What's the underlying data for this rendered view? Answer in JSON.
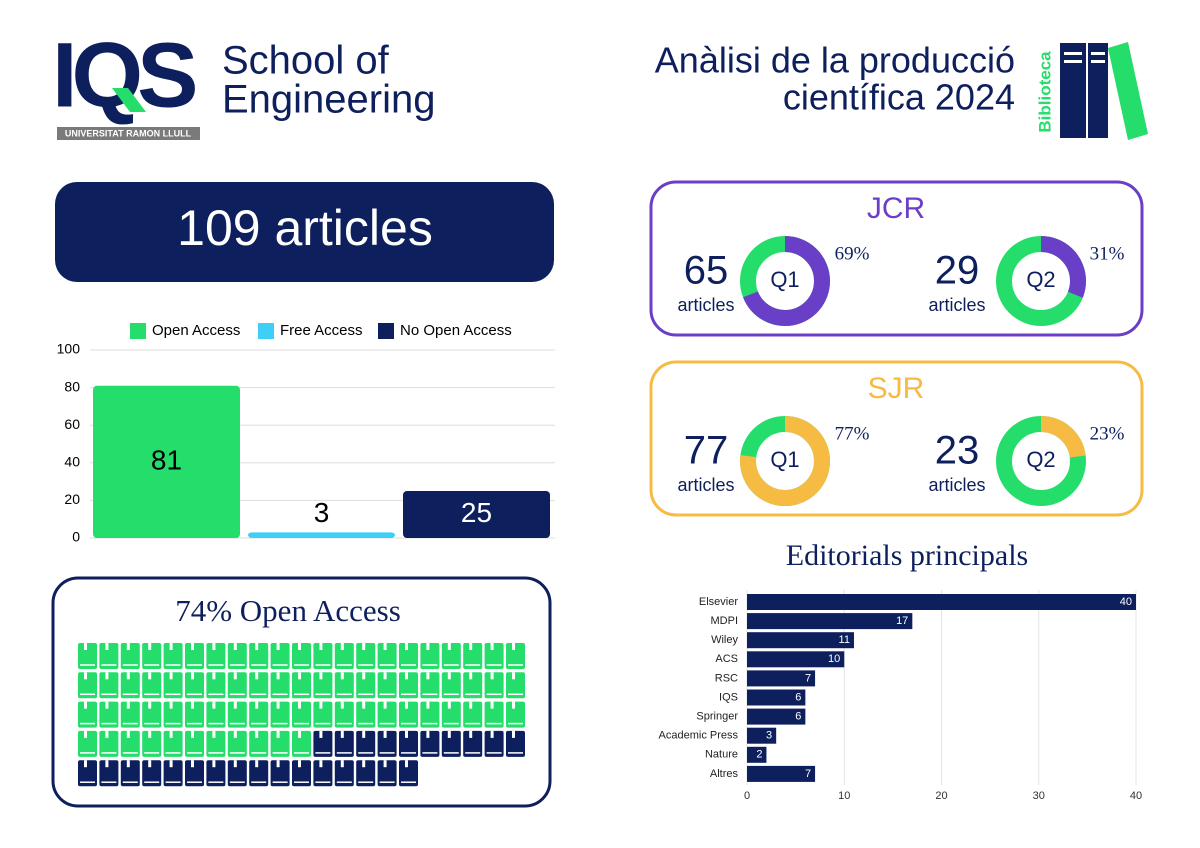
{
  "header": {
    "logo": "IQS",
    "university": "UNIVERSITAT RAMON LLULL",
    "school": [
      "School of",
      "Engineering"
    ],
    "title": [
      "Anàlisi de la producció",
      "científica 2024"
    ],
    "library": "Biblioteca"
  },
  "total": "109 articles",
  "chart_data": [
    {
      "type": "bar",
      "categories": [
        "Open Access",
        "Free Access",
        "No Open Access"
      ],
      "values": [
        81,
        3,
        25
      ],
      "colors": [
        "#25dd6a",
        "#3dcff5",
        "#0d1f5c"
      ],
      "ylim": [
        0,
        100
      ],
      "yticks": [
        0,
        20,
        40,
        60,
        80,
        100
      ],
      "grid": true,
      "legend": "top"
    },
    {
      "type": "waffle",
      "title": "74% Open Access",
      "values": [
        74,
        26
      ],
      "colors": [
        "#25dd6a",
        "#0d1f5c"
      ]
    },
    {
      "type": "donut",
      "title": "JCR",
      "color": "#6a3fc8",
      "rest_color": "#25dd6a",
      "categories": [
        "Q1",
        "Q2"
      ],
      "counts": [
        65,
        29
      ],
      "count_labels": [
        "articles",
        "articles"
      ],
      "values": [
        69,
        31
      ],
      "value_labels": [
        "69%",
        "31%"
      ]
    },
    {
      "type": "donut",
      "title": "SJR",
      "color": "#f5bb42",
      "rest_color": "#25dd6a",
      "categories": [
        "Q1",
        "Q2"
      ],
      "counts": [
        77,
        23
      ],
      "count_labels": [
        "articles",
        "articles"
      ],
      "values": [
        77,
        23
      ],
      "value_labels": [
        "77%",
        "23%"
      ]
    },
    {
      "type": "hbar",
      "title": "Editorials principals",
      "categories": [
        "Elsevier",
        "MDPI",
        "Wiley",
        "ACS",
        "RSC",
        "IQS",
        "Springer",
        "Academic Press",
        "Nature",
        "Altres"
      ],
      "values": [
        40,
        17,
        11,
        10,
        7,
        6,
        6,
        3,
        2,
        7
      ],
      "color": "#0d1f5c",
      "xlim": [
        0,
        40
      ],
      "xticks": [
        0,
        10,
        20,
        30,
        40
      ],
      "grid": true
    }
  ]
}
